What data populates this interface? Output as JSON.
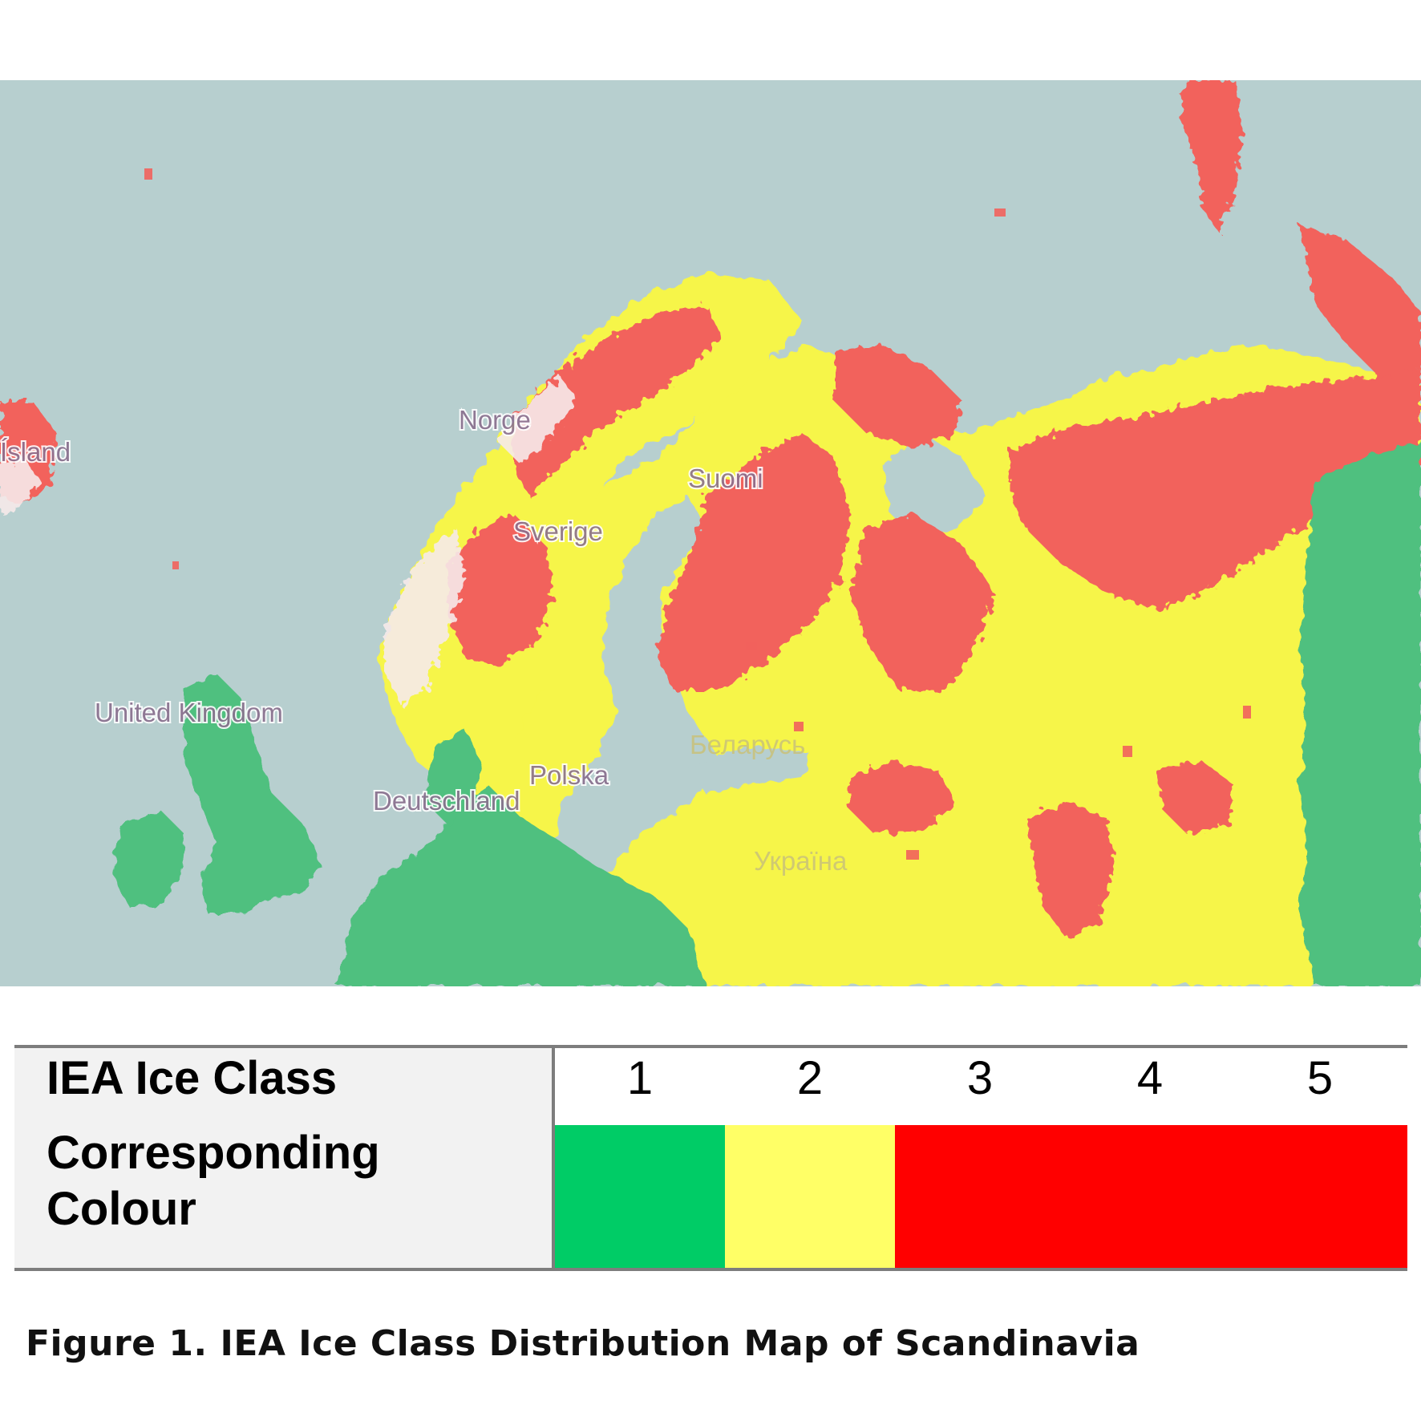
{
  "map": {
    "labels": {
      "norway": "Norge",
      "finland": "Suomi",
      "sweden": "Sverige",
      "uk": "United Kingdom",
      "germany": "Deutschland",
      "poland": "Polska",
      "belarus": "Беларусь",
      "ukraine": "Україна",
      "iceland": "Ísland"
    },
    "colors": {
      "sea": "#b7cfcf",
      "class1": "#4fc07f",
      "class2": "#f6f548",
      "class3to5": "#f2625c",
      "highest": "#f7eaea"
    }
  },
  "legend": {
    "row1_header": "IEA Ice Class",
    "row2_header": "Corresponding Colour",
    "classes": [
      "1",
      "2",
      "3",
      "4",
      "5"
    ],
    "swatches": [
      {
        "color": "#00cc66",
        "classes": [
          "1"
        ]
      },
      {
        "color": "#ffff66",
        "classes": [
          "2"
        ]
      },
      {
        "color": "#ff0000",
        "classes": [
          "3",
          "4",
          "5"
        ]
      }
    ]
  },
  "caption": "Figure 1.  IEA Ice Class Distribution Map of Scandinavia"
}
